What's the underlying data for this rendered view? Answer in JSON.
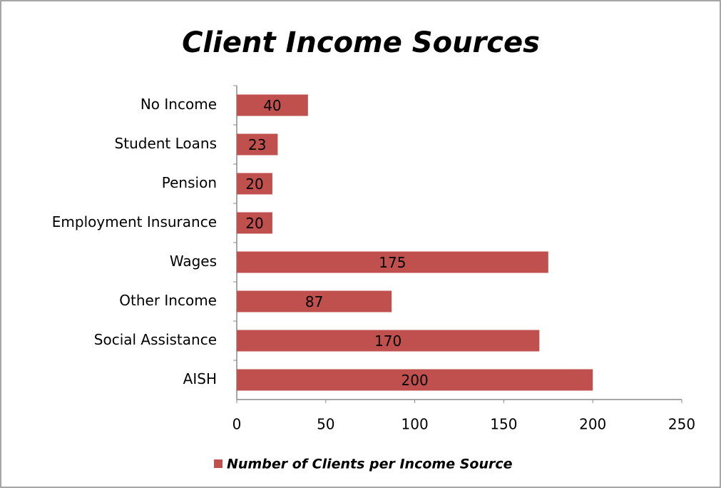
{
  "chart_data": {
    "type": "bar",
    "orientation": "horizontal",
    "title": "Client Income Sources",
    "categories": [
      "No Income",
      "Student Loans",
      "Pension",
      "Employment Insurance",
      "Wages",
      "Other Income",
      "Social Assistance",
      "AISH"
    ],
    "series": [
      {
        "name": "Number of Clients per Income Source",
        "color": "#c0504d",
        "values": [
          40,
          23,
          20,
          20,
          175,
          87,
          170,
          200
        ]
      }
    ],
    "xlim": [
      0,
      250
    ],
    "xticks": [
      0,
      50,
      100,
      150,
      200,
      250
    ],
    "grid": false,
    "legend": "bottom",
    "data_labels": true
  }
}
